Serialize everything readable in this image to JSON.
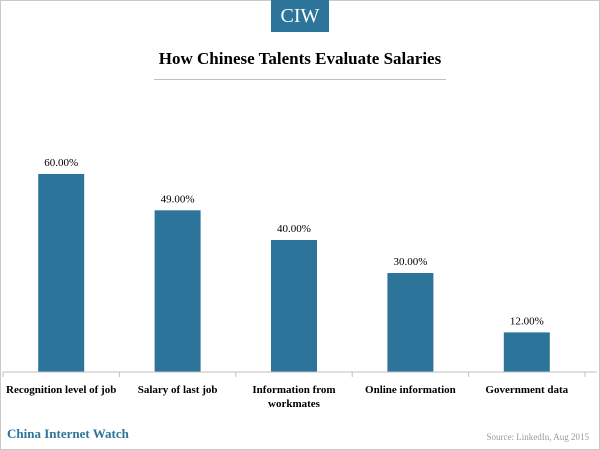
{
  "brand": {
    "logo_text": "CIW",
    "footer_name": "China Internet Watch",
    "color": "#2c7499"
  },
  "source": "Source: LinkedIn, Aug 2015",
  "chart_data": {
    "type": "bar",
    "title": "How Chinese Talents Evaluate Salaries",
    "categories": [
      [
        "Recognition level of job"
      ],
      [
        "Salary of last job"
      ],
      [
        "Information from",
        "workmates"
      ],
      [
        "Online information"
      ],
      [
        "Government data"
      ]
    ],
    "values": [
      60,
      49,
      40,
      30,
      12
    ],
    "value_labels": [
      "60.00%",
      "49.00%",
      "40.00%",
      "30.00%",
      "12.00%"
    ],
    "unit": "%",
    "ylim": [
      0,
      70
    ],
    "grid": false,
    "legend": "none",
    "bar_color": "#2c7499"
  }
}
